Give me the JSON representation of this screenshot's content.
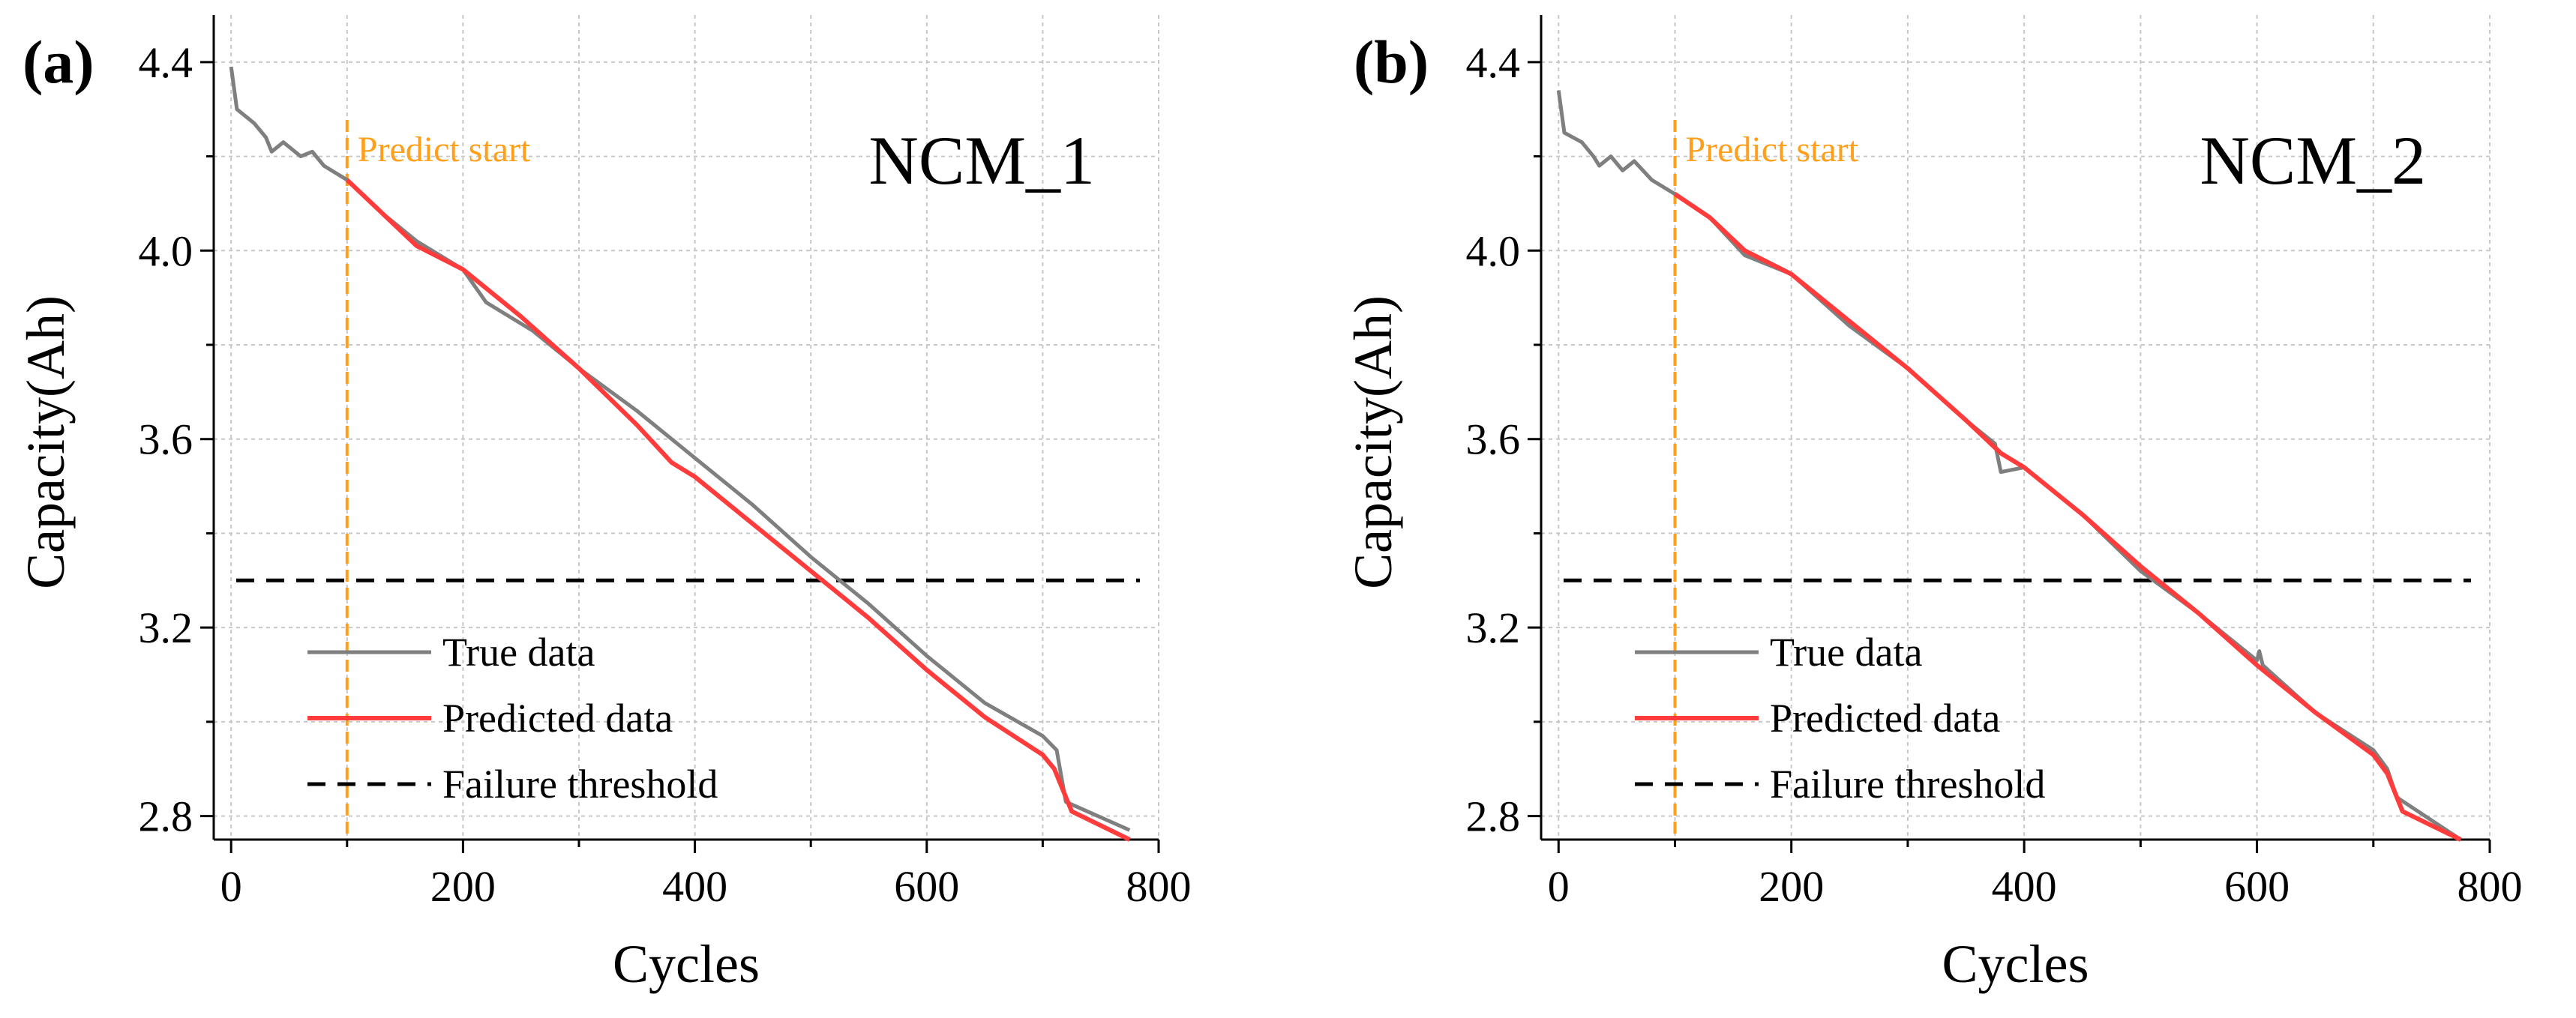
{
  "colors": {
    "true_data": "#7f7f7f",
    "predicted": "#ff3b3b",
    "threshold": "#000000",
    "predict_start": "#ff9f1a",
    "grid": "#c8c8c8"
  },
  "chart_data": [
    {
      "type": "line",
      "panel_label": "(a)",
      "cell_name": "NCM_1",
      "xlabel": "Cycles",
      "ylabel": "Capacity(Ah)",
      "xlim": [
        -15,
        800
      ],
      "ylim": [
        2.75,
        4.5
      ],
      "x_ticks": [
        0,
        200,
        400,
        600,
        800
      ],
      "x_tick_labels": [
        "0",
        "200",
        "400",
        "600",
        "800"
      ],
      "y_ticks": [
        2.8,
        3.2,
        3.6,
        4.0,
        4.4
      ],
      "y_tick_labels": [
        "2.8",
        "3.2",
        "3.6",
        "4.0",
        "4.4"
      ],
      "grid": true,
      "legend_position": "bottom-left",
      "legend": {
        "true_label": "True data",
        "predicted_label": "Predicted data",
        "threshold_label": "Failure threshold"
      },
      "threshold": 3.3,
      "predict_start": {
        "x": 100,
        "label": "Predict start"
      },
      "series": [
        {
          "name": "True data",
          "x": [
            0,
            5,
            20,
            30,
            35,
            45,
            60,
            70,
            80,
            100,
            130,
            160,
            200,
            220,
            260,
            300,
            350,
            400,
            450,
            500,
            550,
            600,
            650,
            700,
            712,
            720,
            775
          ],
          "y": [
            4.39,
            4.3,
            4.27,
            4.24,
            4.21,
            4.23,
            4.2,
            4.21,
            4.18,
            4.15,
            4.08,
            4.02,
            3.96,
            3.89,
            3.83,
            3.75,
            3.66,
            3.56,
            3.46,
            3.35,
            3.25,
            3.14,
            3.04,
            2.97,
            2.94,
            2.83,
            2.77
          ]
        },
        {
          "name": "Predicted data",
          "x": [
            100,
            130,
            160,
            200,
            250,
            300,
            350,
            380,
            400,
            450,
            500,
            550,
            600,
            650,
            700,
            710,
            725,
            775
          ],
          "y": [
            4.15,
            4.08,
            4.01,
            3.96,
            3.86,
            3.75,
            3.63,
            3.55,
            3.52,
            3.42,
            3.32,
            3.22,
            3.11,
            3.01,
            2.93,
            2.9,
            2.81,
            2.75
          ]
        }
      ]
    },
    {
      "type": "line",
      "panel_label": "(b)",
      "cell_name": "NCM_2",
      "xlabel": "Cycles",
      "ylabel": "Capacity(Ah)",
      "xlim": [
        -15,
        800
      ],
      "ylim": [
        2.75,
        4.5
      ],
      "x_ticks": [
        0,
        200,
        400,
        600,
        800
      ],
      "x_tick_labels": [
        "0",
        "200",
        "400",
        "600",
        "800"
      ],
      "y_ticks": [
        2.8,
        3.2,
        3.6,
        4.0,
        4.4
      ],
      "y_tick_labels": [
        "2.8",
        "3.2",
        "3.6",
        "4.0",
        "4.4"
      ],
      "grid": true,
      "legend_position": "bottom-left",
      "legend": {
        "true_label": "True data",
        "predicted_label": "Predicted data",
        "threshold_label": "Failure threshold"
      },
      "threshold": 3.3,
      "predict_start": {
        "x": 100,
        "label": "Predict start"
      },
      "series": [
        {
          "name": "True data",
          "x": [
            0,
            5,
            20,
            30,
            35,
            45,
            55,
            65,
            80,
            100,
            130,
            160,
            200,
            250,
            300,
            350,
            375,
            380,
            400,
            450,
            500,
            550,
            600,
            602,
            605,
            650,
            700,
            712,
            720,
            775
          ],
          "y": [
            4.34,
            4.25,
            4.23,
            4.2,
            4.18,
            4.2,
            4.17,
            4.19,
            4.15,
            4.12,
            4.07,
            3.99,
            3.95,
            3.84,
            3.75,
            3.64,
            3.59,
            3.53,
            3.54,
            3.44,
            3.32,
            3.23,
            3.13,
            3.15,
            3.12,
            3.02,
            2.94,
            2.9,
            2.84,
            2.75
          ]
        },
        {
          "name": "Predicted data",
          "x": [
            100,
            130,
            160,
            200,
            250,
            300,
            350,
            380,
            400,
            450,
            500,
            550,
            600,
            650,
            700,
            712,
            725,
            775
          ],
          "y": [
            4.12,
            4.07,
            4.0,
            3.95,
            3.85,
            3.75,
            3.64,
            3.57,
            3.54,
            3.44,
            3.33,
            3.23,
            3.12,
            3.02,
            2.93,
            2.89,
            2.81,
            2.75
          ]
        }
      ]
    }
  ]
}
